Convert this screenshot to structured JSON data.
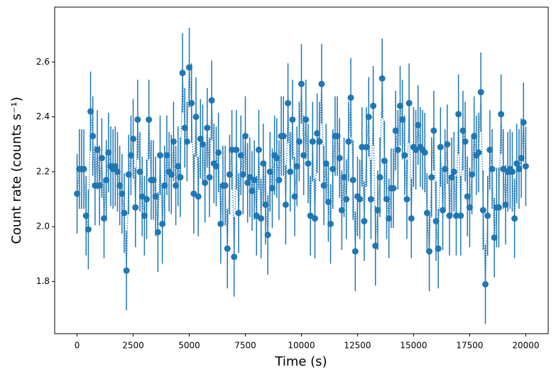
{
  "chart_data": {
    "type": "errorbar",
    "xlabel": "Time (s)",
    "ylabel": "Count rate (counts s⁻¹)",
    "xlim": [
      -1000,
      21000
    ],
    "ylim": [
      1.61,
      2.8
    ],
    "xticks": [
      0,
      2500,
      5000,
      7500,
      10000,
      12500,
      15000,
      17500,
      20000
    ],
    "yticks": [
      1.8,
      {
        "value": 2,
        "label": "2.0"
      },
      2.2,
      2.4,
      2.6
    ],
    "series": [
      {
        "color": "#1f77b4",
        "yerr": 0.145,
        "x": [
          0,
          100,
          200,
          300,
          400,
          500,
          600,
          700,
          800,
          900,
          1000,
          1100,
          1200,
          1300,
          1400,
          1500,
          1600,
          1700,
          1800,
          1900,
          2000,
          2100,
          2200,
          2300,
          2400,
          2500,
          2600,
          2700,
          2800,
          2900,
          3000,
          3100,
          3200,
          3300,
          3400,
          3500,
          3600,
          3700,
          3800,
          3900,
          4000,
          4100,
          4200,
          4300,
          4400,
          4500,
          4600,
          4700,
          4800,
          4900,
          5000,
          5100,
          5200,
          5300,
          5400,
          5500,
          5600,
          5700,
          5800,
          5900,
          6000,
          6100,
          6200,
          6300,
          6400,
          6500,
          6600,
          6700,
          6800,
          6900,
          7000,
          7100,
          7200,
          7300,
          7400,
          7500,
          7600,
          7700,
          7800,
          7900,
          8000,
          8100,
          8200,
          8300,
          8400,
          8500,
          8600,
          8700,
          8800,
          8900,
          9000,
          9100,
          9200,
          9300,
          9400,
          9500,
          9600,
          9700,
          9800,
          9900,
          10000,
          10100,
          10200,
          10300,
          10400,
          10500,
          10600,
          10700,
          10800,
          10900,
          11000,
          11100,
          11200,
          11300,
          11400,
          11500,
          11600,
          11700,
          11800,
          11900,
          12000,
          12100,
          12200,
          12300,
          12400,
          12500,
          12600,
          12700,
          12800,
          12900,
          13000,
          13100,
          13200,
          13300,
          13400,
          13500,
          13600,
          13700,
          13800,
          13900,
          14000,
          14100,
          14200,
          14300,
          14400,
          14500,
          14600,
          14700,
          14800,
          14900,
          15000,
          15100,
          15200,
          15300,
          15400,
          15500,
          15600,
          15700,
          15800,
          15900,
          16000,
          16100,
          16200,
          16300,
          16400,
          16500,
          16600,
          16700,
          16800,
          16900,
          17000,
          17100,
          17200,
          17300,
          17400,
          17500,
          17600,
          17700,
          17800,
          17900,
          18000,
          18100,
          18200,
          18300,
          18400,
          18500,
          18600,
          18700,
          18800,
          18900,
          19000,
          19100,
          19200,
          19300,
          19400,
          19500,
          19600,
          19700,
          19800,
          19900,
          20000
        ],
        "values": [
          2.12,
          2.21,
          2.21,
          2.21,
          2.04,
          1.99,
          2.42,
          2.33,
          2.15,
          2.28,
          2.15,
          2.25,
          2.03,
          2.17,
          2.27,
          2.22,
          2.21,
          2.22,
          2.2,
          2.15,
          2.12,
          2.05,
          1.84,
          2.19,
          2.26,
          2.32,
          2.07,
          2.39,
          2.2,
          2.11,
          2.04,
          2.1,
          2.39,
          2.17,
          2.17,
          2.11,
          1.98,
          2.26,
          2.01,
          2.15,
          2.26,
          2.2,
          2.19,
          2.31,
          2.15,
          2.22,
          2.18,
          2.56,
          2.36,
          2.31,
          2.58,
          2.45,
          2.12,
          2.4,
          2.11,
          2.32,
          2.3,
          2.16,
          2.36,
          2.18,
          2.46,
          2.23,
          2.22,
          2.27,
          2.01,
          2.15,
          2.15,
          1.92,
          2.19,
          2.28,
          1.89,
          2.28,
          2.05,
          2.26,
          2.19,
          2.33,
          2.16,
          2.18,
          2.13,
          2.17,
          2.04,
          2.28,
          2.03,
          2.23,
          2.08,
          1.97,
          2.2,
          2.14,
          2.26,
          2.25,
          2.17,
          2.33,
          2.33,
          2.08,
          2.45,
          2.2,
          2.39,
          2.11,
          2.22,
          2.31,
          2.52,
          2.26,
          2.39,
          2.23,
          2.04,
          2.31,
          2.03,
          2.34,
          2.31,
          2.52,
          2.15,
          2.23,
          2.09,
          2.01,
          2.21,
          2.33,
          2.33,
          2.25,
          2.06,
          2.18,
          2.1,
          2.31,
          2.47,
          2.17,
          1.91,
          2.11,
          2.1,
          2.29,
          2.02,
          2.29,
          2.4,
          2.1,
          2.44,
          1.93,
          2.06,
          2.18,
          2.54,
          2.24,
          2.1,
          2.03,
          2.14,
          2.14,
          2.35,
          2.28,
          2.44,
          2.39,
          2.26,
          2.1,
          2.45,
          2.03,
          2.29,
          2.28,
          2.37,
          2.29,
          2.28,
          2.27,
          2.05,
          1.91,
          2.18,
          2.35,
          2.02,
          1.92,
          2.29,
          2.06,
          2.21,
          2.3,
          2.04,
          2.18,
          2.2,
          2.04,
          2.41,
          2.04,
          2.35,
          2.31,
          2.11,
          2.07,
          2.19,
          2.33,
          2.26,
          2.27,
          2.49,
          2.06,
          1.79,
          2.04,
          2.28,
          2.21,
          1.96,
          2.07,
          2.07,
          2.41,
          2.21,
          2.08,
          2.2,
          2.21,
          2.2,
          2.03,
          2.23,
          2.21,
          2.25,
          2.38,
          2.22
        ]
      }
    ]
  }
}
